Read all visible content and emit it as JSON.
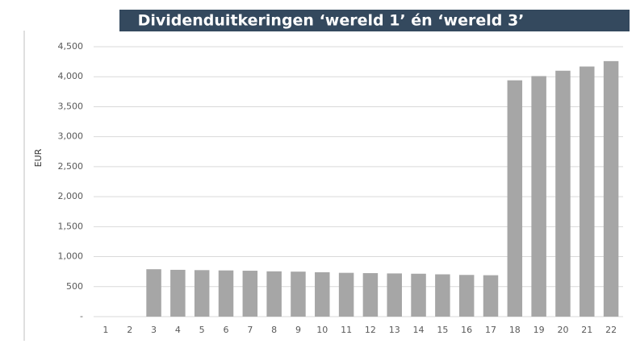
{
  "chart_data": {
    "type": "bar",
    "title": "Dividenduitkeringen ‘wereld 1’ én ‘wereld 3’",
    "y_label": "EUR",
    "categories": [
      "1",
      "2",
      "3",
      "4",
      "5",
      "6",
      "7",
      "8",
      "9",
      "10",
      "11",
      "12",
      "13",
      "14",
      "15",
      "16",
      "17",
      "18",
      "19",
      "20",
      "21",
      "22"
    ],
    "values": [
      0,
      0,
      790,
      780,
      775,
      770,
      765,
      755,
      750,
      740,
      730,
      725,
      720,
      715,
      705,
      695,
      690,
      3940,
      4010,
      4100,
      4170,
      4260
    ],
    "color": "#a6a6a6",
    "ylim": [
      0,
      4500
    ],
    "yticks": [
      {
        "value": 0,
        "label": "-"
      },
      500,
      {
        "value": 1000,
        "label": "1,000"
      },
      {
        "value": 1500,
        "label": "1,500"
      },
      {
        "value": 2000,
        "label": "2,000"
      },
      {
        "value": 2500,
        "label": "2,500"
      },
      {
        "value": 3000,
        "label": "3,000"
      },
      {
        "value": 3500,
        "label": "3,500"
      },
      {
        "value": 4000,
        "label": "4,000"
      },
      {
        "value": 4500,
        "label": "4,500"
      }
    ],
    "grid": true
  }
}
